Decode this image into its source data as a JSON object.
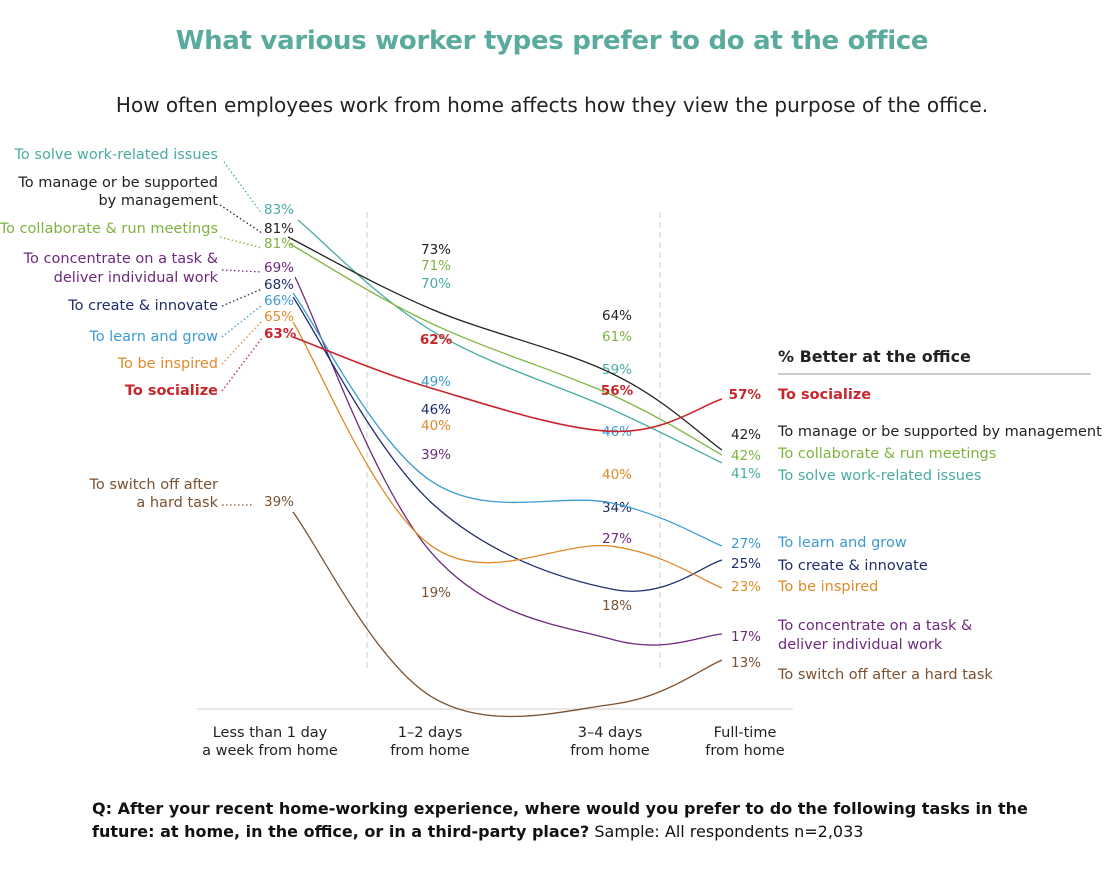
{
  "title": "What various worker types prefer to do at the office",
  "subtitle": "How often employees work from home affects how they view the purpose of the office.",
  "legend_header": "% Better at the office",
  "question": {
    "bold": "Q: After your recent home-working experience, where would you prefer to do the following tasks in the future: at home, in the office, or in a third-party place?",
    "normal": " Sample: All respondents n=2,033"
  },
  "chart_data": {
    "type": "line",
    "title": "What various worker types prefer to do at the office",
    "ylabel": "% Better at the office",
    "xlabel": "",
    "grid": false,
    "categories": [
      [
        "Less than 1 day",
        "a week from home"
      ],
      [
        "1–2 days",
        "from  home"
      ],
      [
        "3–4 days",
        "from home"
      ],
      [
        "Full-time",
        "from home"
      ]
    ],
    "series": [
      {
        "name": "To solve work-related issues",
        "left_label": [
          "To solve work-related issues"
        ],
        "right_label": [
          "To solve work-related issues"
        ],
        "values": [
          83,
          70,
          59,
          41
        ],
        "color": "#4aaba3",
        "bold": false
      },
      {
        "name": "To manage or be supported by management",
        "left_label": [
          "To manage or be supported",
          "by management"
        ],
        "right_label": [
          "To manage or be supported by management"
        ],
        "values": [
          81,
          73,
          64,
          42
        ],
        "color": "#222222",
        "bold": false
      },
      {
        "name": "To collaborate & run meetings",
        "left_label": [
          "To collaborate & run meetings"
        ],
        "right_label": [
          "To collaborate & run meetings"
        ],
        "values": [
          81,
          71,
          61,
          42
        ],
        "color": "#7fb340",
        "bold": false
      },
      {
        "name": "To concentrate on a task & deliver individual work",
        "left_label": [
          "To concentrate on a task &",
          "deliver individual work"
        ],
        "right_label": [
          "To concentrate on a task &",
          "deliver individual work"
        ],
        "values": [
          69,
          39,
          27,
          17
        ],
        "color": "#6e2a7e",
        "bold": false
      },
      {
        "name": "To create & innovate",
        "left_label": [
          "To create & innovate"
        ],
        "right_label": [
          "To create & innovate"
        ],
        "values": [
          68,
          46,
          34,
          25
        ],
        "color": "#1f2d6b",
        "bold": false
      },
      {
        "name": "To learn and grow",
        "left_label": [
          "To learn and grow"
        ],
        "right_label": [
          "To learn and grow"
        ],
        "values": [
          66,
          49,
          46,
          27
        ],
        "color": "#3d9ad1",
        "bold": false
      },
      {
        "name": "To be inspired",
        "left_label": [
          "To be inspired"
        ],
        "right_label": [
          "To be inspired"
        ],
        "values": [
          65,
          40,
          40,
          23
        ],
        "color": "#e08a2a",
        "bold": false
      },
      {
        "name": "To socialize",
        "left_label": [
          "To socialize"
        ],
        "right_label": [
          "To socialize"
        ],
        "values": [
          63,
          62,
          56,
          57
        ],
        "color": "#c8262b",
        "bold": true
      },
      {
        "name": "To switch off after a hard task",
        "left_label": [
          "To switch off after",
          "a hard task"
        ],
        "right_label": [
          "To switch off after a hard task"
        ],
        "values": [
          39,
          19,
          18,
          13
        ],
        "color": "#7a5232",
        "bold": false
      }
    ]
  }
}
